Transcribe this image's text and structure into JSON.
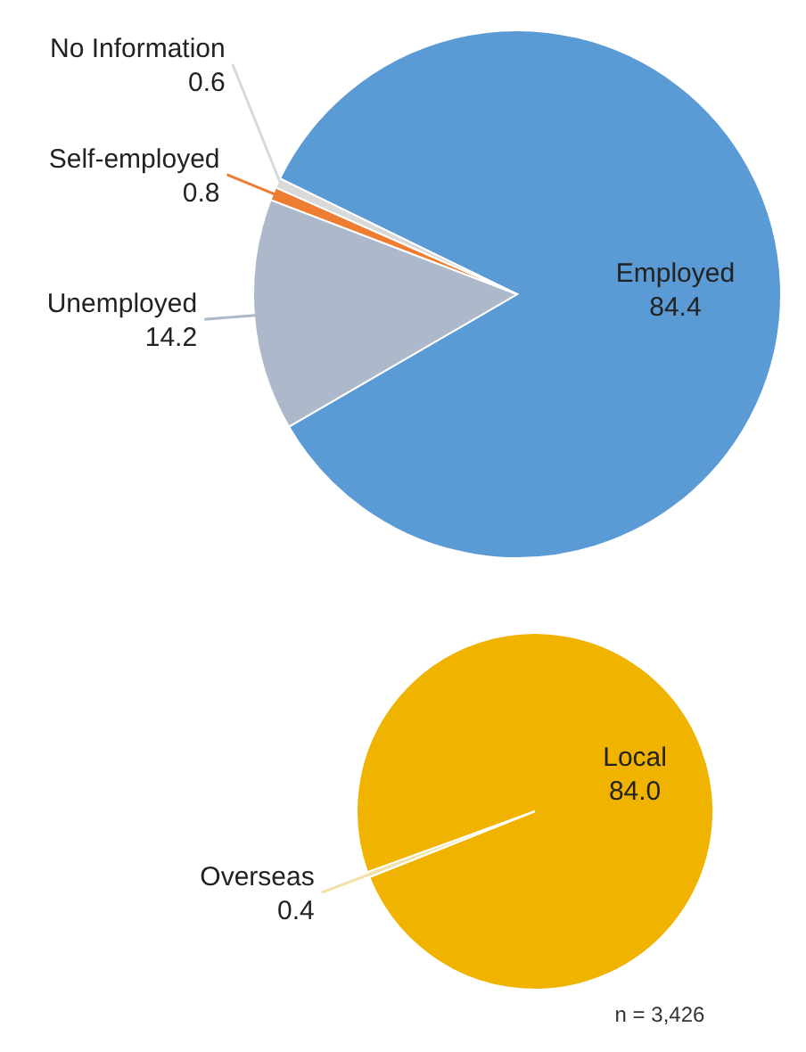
{
  "chart_data": [
    {
      "type": "pie",
      "categories": [
        "Employed",
        "Unemployed",
        "Self-employed",
        "No Information"
      ],
      "values": [
        84.4,
        14.2,
        0.8,
        0.6
      ],
      "colors": [
        "#5b9bd5",
        "#adb9ca",
        "#ed7d31",
        "#d9d9d9"
      ],
      "value_labels": [
        "84.4",
        "14.2",
        "0.8",
        "0.6"
      ]
    },
    {
      "type": "pie",
      "categories": [
        "Local",
        "Overseas"
      ],
      "values": [
        84.0,
        0.4
      ],
      "colors": [
        "#f0b400",
        "#f2e0a6"
      ],
      "value_labels": [
        "84.0",
        "0.4"
      ],
      "annotations": [
        "n = 3,426"
      ]
    }
  ]
}
